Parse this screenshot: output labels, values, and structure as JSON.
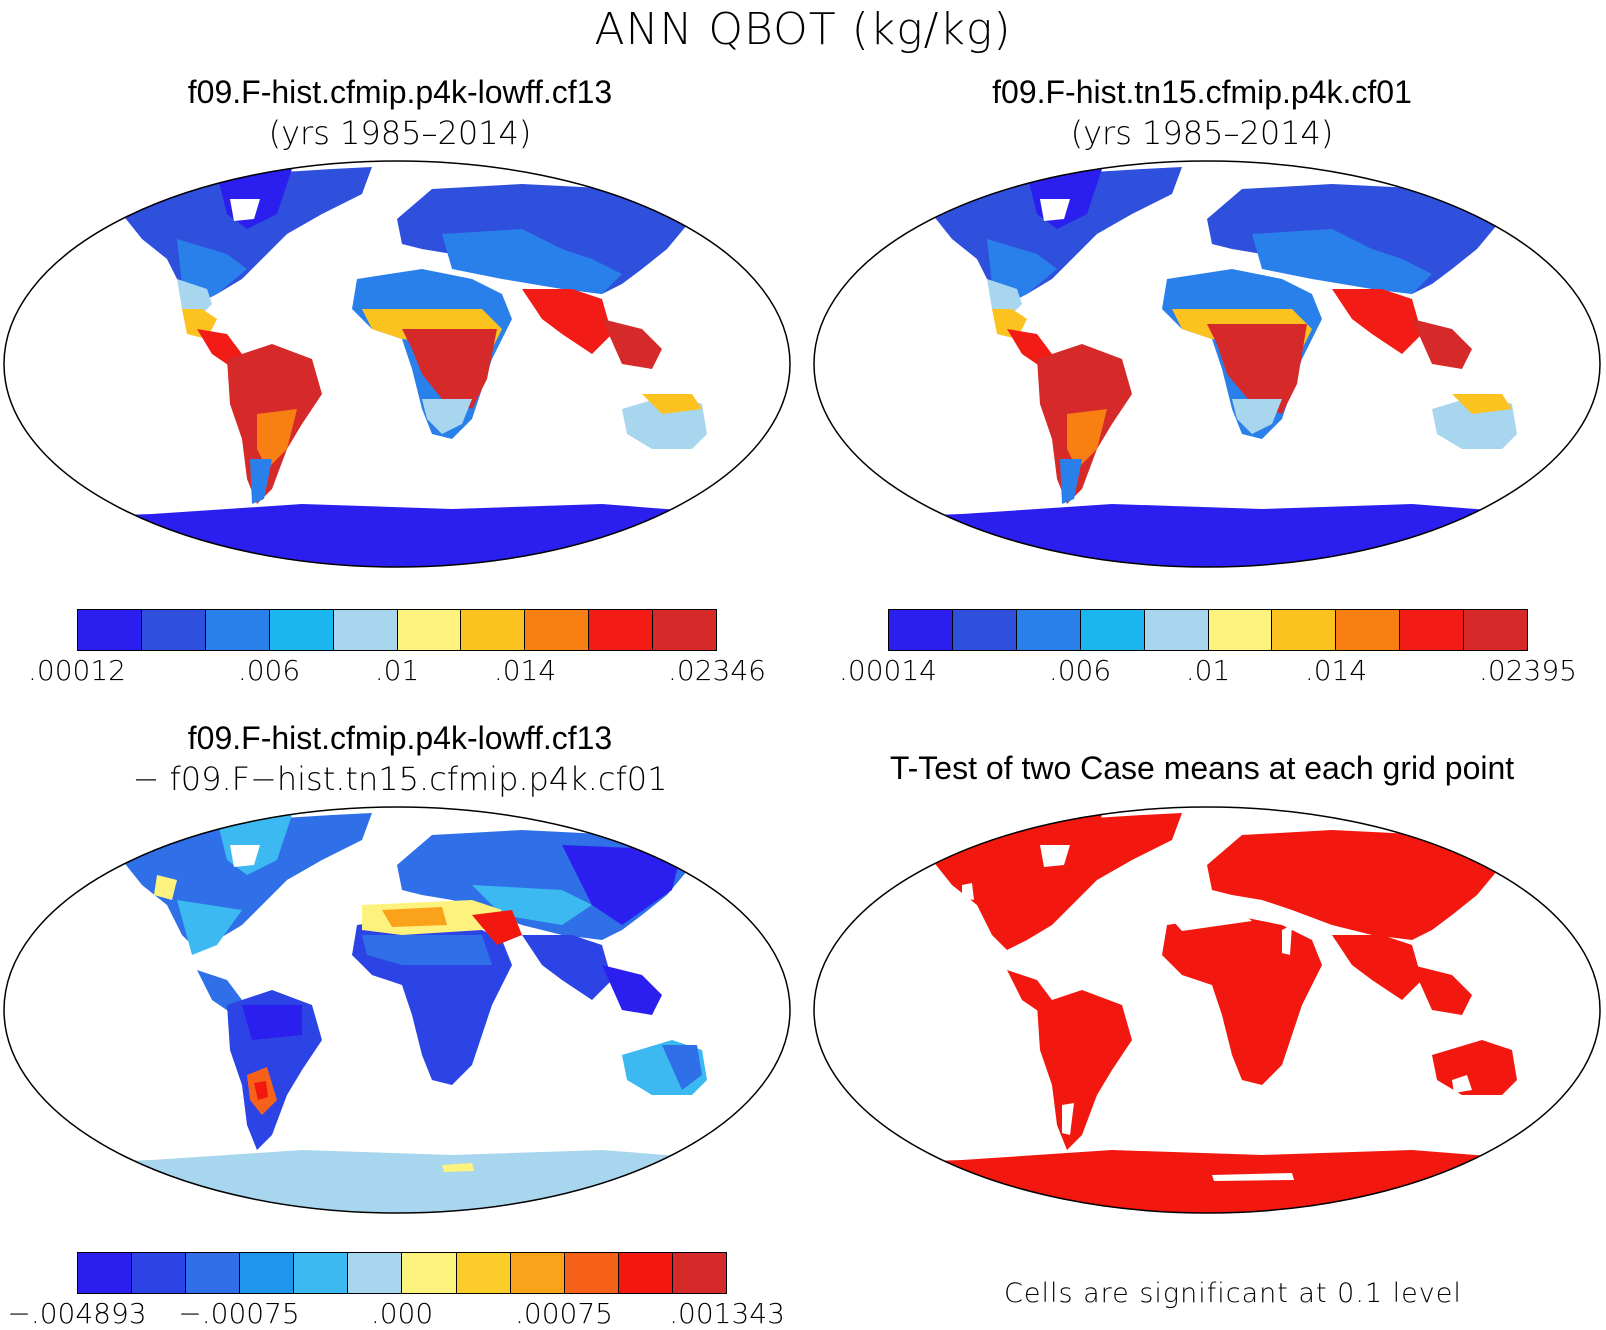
{
  "title": "ANN QBOT (kg/kg)",
  "panels": [
    {
      "id": "case1",
      "title": "f09.F-hist.cfmip.p4k-lowff.cf13",
      "subtitle": "(yrs 1985–2014)",
      "colorbar": {
        "colors": [
          "#2b1ff0",
          "#2f4fdd",
          "#2a80ea",
          "#1bb6f0",
          "#a8d6ee",
          "#fdf27d",
          "#fcc21f",
          "#f87f12",
          "#f21b16",
          "#d62a2a"
        ],
        "ticks": [
          ".00012",
          ".006",
          ".01",
          ".014",
          ".02346"
        ]
      }
    },
    {
      "id": "case2",
      "title": "f09.F-hist.tn15.cfmip.p4k.cf01",
      "subtitle": "(yrs 1985–2014)",
      "colorbar": {
        "colors": [
          "#2b1ff0",
          "#2f4fdd",
          "#2a80ea",
          "#1bb6f0",
          "#a8d6ee",
          "#fdf27d",
          "#fcc21f",
          "#f87f12",
          "#f21b16",
          "#d62a2a"
        ],
        "ticks": [
          ".00014",
          ".006",
          ".01",
          ".014",
          ".02395"
        ]
      }
    },
    {
      "id": "diff",
      "title": "f09.F-hist.cfmip.p4k-lowff.cf13",
      "subtitle": "− f09.F−hist.tn15.cfmip.p4k.cf01",
      "colorbar": {
        "colors": [
          "#2b1ff0",
          "#2c44e6",
          "#2f6fe8",
          "#1f95ee",
          "#3db9f2",
          "#a8d6ee",
          "#fdf27d",
          "#fbcc2a",
          "#f9a21a",
          "#f7621a",
          "#f2170f",
          "#d62a2a"
        ],
        "ticks": [
          "−.004893",
          "−.00075",
          ".000",
          ".00075",
          ".001343"
        ]
      }
    },
    {
      "id": "ttest",
      "title": "T-Test of two Case means at each grid point",
      "note": "Cells are significant at 0.1 level",
      "significant_color": "#f2170f"
    }
  ]
}
